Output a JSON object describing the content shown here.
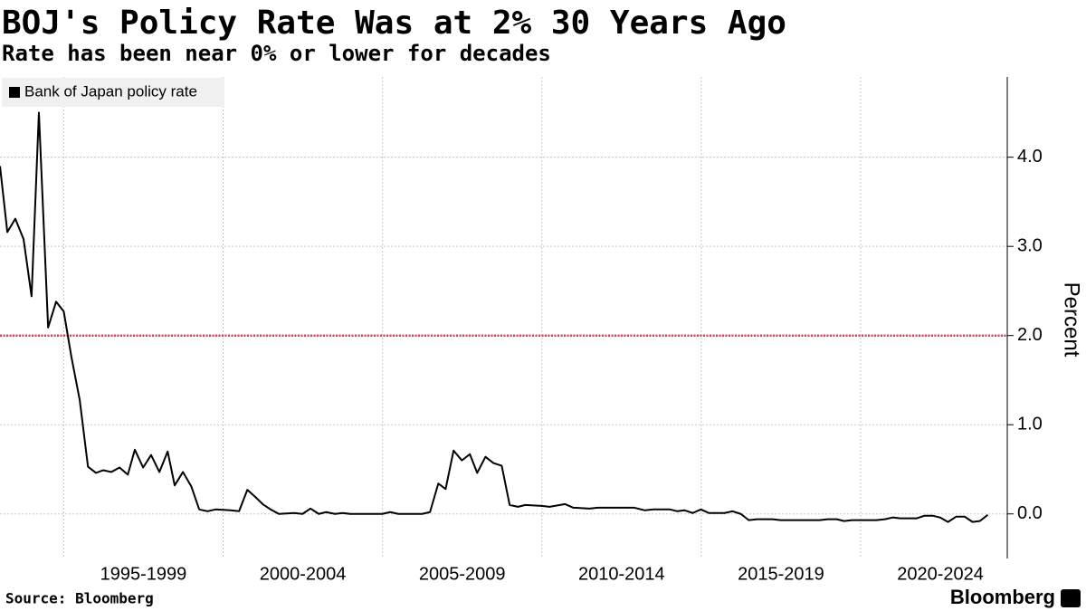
{
  "chart_data": {
    "type": "line",
    "title": "BOJ's Policy Rate Was at 2% 30 Years Ago",
    "subtitle": "Rate has been near 0% or lower for decades",
    "y_label": "Percent",
    "source": "Source: Bloomberg",
    "brand": "Bloomberg",
    "xlim": [
      1993,
      2024.6
    ],
    "ylim": [
      -0.5,
      4.9
    ],
    "xticks": [
      {
        "value": 1997.5,
        "label": "1995-1999"
      },
      {
        "value": 2002.5,
        "label": "2000-2004"
      },
      {
        "value": 2007.5,
        "label": "2005-2009"
      },
      {
        "value": 2012.5,
        "label": "2010-2014"
      },
      {
        "value": 2017.5,
        "label": "2015-2019"
      },
      {
        "value": 2022.5,
        "label": "2020-2024"
      }
    ],
    "xgrid": [
      1995,
      2000,
      2005,
      2010,
      2015,
      2020
    ],
    "yticks": [
      {
        "value": 0,
        "label": "0.0"
      },
      {
        "value": 1,
        "label": "1.0"
      },
      {
        "value": 2,
        "label": "2.0"
      },
      {
        "value": 3,
        "label": "3.0"
      },
      {
        "value": 4,
        "label": "4.0"
      }
    ],
    "grid": true,
    "reference_line": {
      "value": 2,
      "color": "#d2455b"
    },
    "legend": "top-left",
    "x": [
      1993.0,
      1993.23,
      1993.48,
      1993.74,
      1993.99,
      1994.22,
      1994.51,
      1994.76,
      1995.0,
      1995.24,
      1995.5,
      1995.76,
      1996.01,
      1996.24,
      1996.49,
      1996.75,
      1997.01,
      1997.23,
      1997.49,
      1997.74,
      1998.0,
      1998.26,
      1998.48,
      1998.74,
      1999.0,
      1999.25,
      1999.51,
      1999.76,
      2000.24,
      2000.5,
      2000.76,
      2001.01,
      2001.24,
      2001.49,
      2001.75,
      2002.23,
      2002.49,
      2002.74,
      2003.0,
      2003.23,
      2003.51,
      2003.74,
      2003.99,
      2004.99,
      2005.24,
      2005.5,
      2006.24,
      2006.49,
      2006.75,
      2006.98,
      2007.23,
      2007.49,
      2007.74,
      2007.97,
      2008.23,
      2008.48,
      2008.74,
      2008.99,
      2009.25,
      2009.48,
      2009.99,
      2010.24,
      2010.73,
      2010.98,
      2011.49,
      2011.75,
      2012.89,
      2013.23,
      2013.48,
      2014.02,
      2014.25,
      2014.48,
      2014.73,
      2014.99,
      2015.24,
      2015.73,
      2015.98,
      2016.24,
      2016.49,
      2016.75,
      2017.23,
      2017.49,
      2018.71,
      2018.97,
      2019.25,
      2019.48,
      2019.73,
      2020.5,
      2020.76,
      2021.01,
      2021.24,
      2021.75,
      2022.01,
      2022.26,
      2022.49,
      2022.74,
      2023.0,
      2023.26,
      2023.51,
      2023.74,
      2023.99
    ],
    "series": [
      {
        "name": "Bank of Japan policy rate",
        "color": "#000000",
        "values": [
          3.9,
          3.16,
          3.31,
          3.08,
          2.44,
          4.5,
          2.09,
          2.38,
          2.27,
          1.76,
          1.28,
          0.53,
          0.46,
          0.49,
          0.47,
          0.52,
          0.44,
          0.72,
          0.52,
          0.66,
          0.47,
          0.7,
          0.32,
          0.47,
          0.31,
          0.05,
          0.03,
          0.05,
          0.04,
          0.03,
          0.27,
          0.19,
          0.11,
          0.05,
          0.0,
          0.01,
          0.0,
          0.06,
          0.0,
          0.02,
          0.0,
          0.01,
          0.0,
          0.0,
          0.02,
          0.0,
          0.0,
          0.02,
          0.34,
          0.28,
          0.71,
          0.6,
          0.67,
          0.46,
          0.64,
          0.57,
          0.54,
          0.1,
          0.08,
          0.1,
          0.09,
          0.08,
          0.11,
          0.07,
          0.06,
          0.07,
          0.07,
          0.04,
          0.05,
          0.05,
          0.03,
          0.04,
          0.01,
          0.05,
          0.01,
          0.01,
          0.03,
          0.0,
          -0.07,
          -0.06,
          -0.06,
          -0.07,
          -0.07,
          -0.06,
          -0.06,
          -0.08,
          -0.07,
          -0.07,
          -0.06,
          -0.04,
          -0.05,
          -0.05,
          -0.02,
          -0.02,
          -0.04,
          -0.09,
          -0.03,
          -0.03,
          -0.09,
          -0.08,
          -0.01
        ]
      }
    ]
  }
}
